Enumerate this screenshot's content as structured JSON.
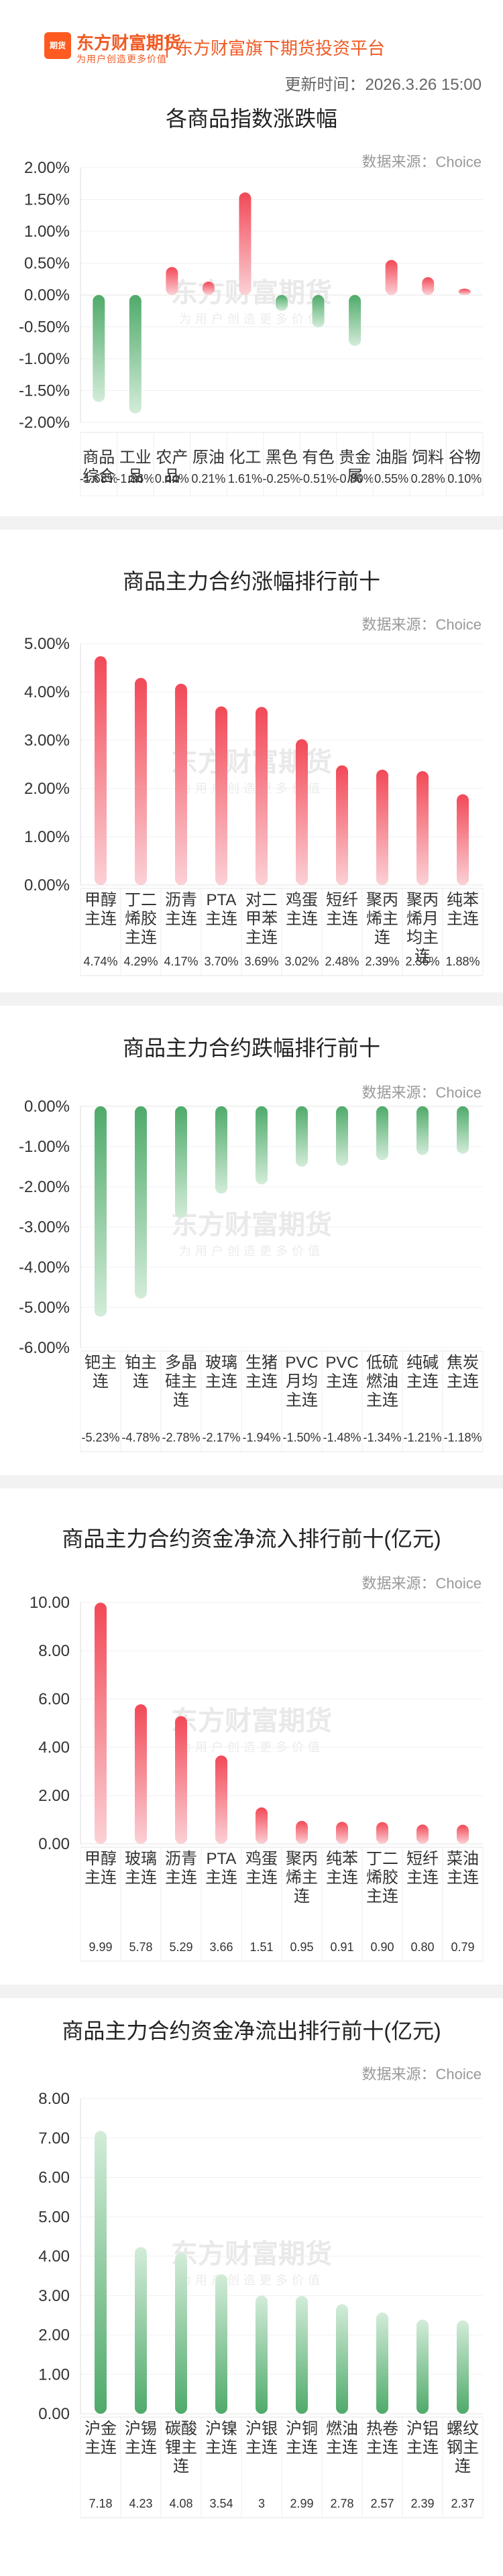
{
  "header": {
    "logo_icon": "dongfang-caifu-futures-logo",
    "logo_text": "期货",
    "brand_name": "东方财富期货",
    "brand_slogan": "为用户创造更多价值",
    "tagline": "东方财富旗下期货投资平台",
    "update_time": "更新时间：2026.3.26 15:00"
  },
  "watermark": {
    "logo": "东方财富期货",
    "sub": "为用户创造更多价值"
  },
  "colors": {
    "up": "#f24957",
    "down": "#4faa6a",
    "axis_text": "#333333",
    "grid": "#eeeeee"
  },
  "cards": [
    {
      "title": "各商品指数涨跌幅",
      "source": "数据来源：Choice"
    },
    {
      "title": "商品主力合约涨幅排行前十",
      "source": "数据来源：Choice"
    },
    {
      "title": "商品主力合约跌幅排行前十",
      "source": "数据来源：Choice"
    },
    {
      "title": "商品主力合约资金净流入排行前十(亿元)",
      "source": "数据来源：Choice"
    },
    {
      "title": "商品主力合约资金净流出排行前十(亿元)",
      "source": "数据来源：Choice"
    }
  ],
  "chart_data": [
    {
      "type": "bar",
      "title": "各商品指数涨跌幅",
      "unit": "%",
      "ylim": [
        -2.0,
        2.0
      ],
      "yticks": [
        "2.00%",
        "1.50%",
        "1.00%",
        "0.50%",
        "0.00%",
        "-0.50%",
        "-1.00%",
        "-1.50%",
        "-2.00%"
      ],
      "categories": [
        "商品综合",
        "工业品",
        "农产品",
        "原油",
        "化工",
        "黑色",
        "有色",
        "贵金属",
        "油脂",
        "饲料",
        "谷物"
      ],
      "cat_lines": [
        [
          "商品",
          "综合"
        ],
        [
          "工业",
          "品"
        ],
        [
          "农产",
          "品"
        ],
        [
          "原油"
        ],
        [
          "化工"
        ],
        [
          "黑色"
        ],
        [
          "有色"
        ],
        [
          "贵金",
          "属"
        ],
        [
          "油脂"
        ],
        [
          "饲料"
        ],
        [
          "谷物"
        ]
      ],
      "values": [
        -1.68,
        -1.86,
        0.44,
        0.21,
        1.61,
        -0.25,
        -0.51,
        -0.8,
        0.55,
        0.28,
        0.1
      ],
      "labels": [
        "-1.68%",
        "-1.86%",
        "0.44%",
        "0.21%",
        "1.61%",
        "-0.25%",
        "-0.51%",
        "-0.80%",
        "0.55%",
        "0.28%",
        "0.10%"
      ],
      "inline_category": true
    },
    {
      "type": "bar",
      "title": "商品主力合约涨幅排行前十",
      "unit": "%",
      "ylim": [
        0,
        5.0
      ],
      "yticks": [
        "5.00%",
        "4.00%",
        "3.00%",
        "2.00%",
        "1.00%",
        "0.00%"
      ],
      "categories": [
        "甲醇主连",
        "丁二烯胶主连",
        "沥青主连",
        "PTA主连",
        "对二甲苯主连",
        "鸡蛋主连",
        "短纤主连",
        "聚丙烯主连",
        "聚丙烯月均主连",
        "纯苯主连"
      ],
      "cat_lines": [
        [
          "甲醇",
          "主连"
        ],
        [
          "丁二",
          "烯胶",
          "主连"
        ],
        [
          "沥青",
          "主连"
        ],
        [
          "PTA",
          "主连"
        ],
        [
          "对二",
          "甲苯",
          "主连"
        ],
        [
          "鸡蛋",
          "主连"
        ],
        [
          "短纤",
          "主连"
        ],
        [
          "聚丙",
          "烯主",
          "连"
        ],
        [
          "聚丙",
          "烯月",
          "均主",
          "连"
        ],
        [
          "纯苯",
          "主连"
        ]
      ],
      "values": [
        4.74,
        4.29,
        4.17,
        3.7,
        3.69,
        3.02,
        2.48,
        2.39,
        2.36,
        1.88
      ],
      "labels": [
        "4.74%",
        "4.29%",
        "4.17%",
        "3.70%",
        "3.69%",
        "3.02%",
        "2.48%",
        "2.39%",
        "2.36%",
        "1.88%"
      ]
    },
    {
      "type": "bar",
      "title": "商品主力合约跌幅排行前十",
      "unit": "%",
      "ylim": [
        -6.0,
        0
      ],
      "yticks": [
        "0.00%",
        "-1.00%",
        "-2.00%",
        "-3.00%",
        "-4.00%",
        "-5.00%",
        "-6.00%"
      ],
      "categories": [
        "钯主连",
        "铂主连",
        "多晶硅主连",
        "玻璃主连",
        "生猪主连",
        "PVC月均主连",
        "PVC主连",
        "低硫燃油主连",
        "纯碱主连",
        "焦炭主连"
      ],
      "cat_lines": [
        [
          "钯主",
          "连"
        ],
        [
          "铂主",
          "连"
        ],
        [
          "多晶",
          "硅主",
          "连"
        ],
        [
          "玻璃",
          "主连"
        ],
        [
          "生猪",
          "主连"
        ],
        [
          "PVC",
          "月均",
          "主连"
        ],
        [
          "PVC",
          "主连"
        ],
        [
          "低硫",
          "燃油",
          "主连"
        ],
        [
          "纯碱",
          "主连"
        ],
        [
          "焦炭",
          "主连"
        ]
      ],
      "values": [
        -5.23,
        -4.78,
        -2.78,
        -2.17,
        -1.94,
        -1.5,
        -1.48,
        -1.34,
        -1.21,
        -1.18
      ],
      "labels": [
        "-5.23%",
        "-4.78%",
        "-2.78%",
        "-2.17%",
        "-1.94%",
        "-1.50%",
        "-1.48%",
        "-1.34%",
        "-1.21%",
        "-1.18%"
      ]
    },
    {
      "type": "bar",
      "title": "商品主力合约资金净流入排行前十(亿元)",
      "unit": "亿元",
      "ylim": [
        0,
        10.0
      ],
      "yticks": [
        "10.00",
        "8.00",
        "6.00",
        "4.00",
        "2.00",
        "0.00"
      ],
      "categories": [
        "甲醇主连",
        "玻璃主连",
        "沥青主连",
        "PTA主连",
        "鸡蛋主连",
        "聚丙烯主连",
        "纯苯主连",
        "丁二烯胶主连",
        "短纤主连",
        "菜油主连"
      ],
      "cat_lines": [
        [
          "甲醇",
          "主连"
        ],
        [
          "玻璃",
          "主连"
        ],
        [
          "沥青",
          "主连"
        ],
        [
          "PTA",
          "主连"
        ],
        [
          "鸡蛋",
          "主连"
        ],
        [
          "聚丙",
          "烯主",
          "连"
        ],
        [
          "纯苯",
          "主连"
        ],
        [
          "丁二",
          "烯胶",
          "主连"
        ],
        [
          "短纤",
          "主连"
        ],
        [
          "菜油",
          "主连"
        ]
      ],
      "values": [
        9.99,
        5.78,
        5.29,
        3.66,
        1.51,
        0.95,
        0.91,
        0.9,
        0.8,
        0.79
      ],
      "labels": [
        "9.99",
        "5.78",
        "5.29",
        "3.66",
        "1.51",
        "0.95",
        "0.91",
        "0.90",
        "0.80",
        "0.79"
      ]
    },
    {
      "type": "bar",
      "title": "商品主力合约资金净流出排行前十(亿元)",
      "unit": "亿元",
      "ylim": [
        0,
        8.0
      ],
      "yticks": [
        "8.00",
        "7.00",
        "6.00",
        "5.00",
        "4.00",
        "3.00",
        "2.00",
        "1.00",
        "0.00"
      ],
      "categories": [
        "沪金主连",
        "沪锡主连",
        "碳酸锂主连",
        "沪镍主连",
        "沪银主连",
        "沪铜主连",
        "燃油主连",
        "热卷主连",
        "沪铝主连",
        "螺纹钢主连"
      ],
      "cat_lines": [
        [
          "沪金",
          "主连"
        ],
        [
          "沪锡",
          "主连"
        ],
        [
          "碳酸",
          "锂主",
          "连"
        ],
        [
          "沪镍",
          "主连"
        ],
        [
          "沪银",
          "主连"
        ],
        [
          "沪铜",
          "主连"
        ],
        [
          "燃油",
          "主连"
        ],
        [
          "热卷",
          "主连"
        ],
        [
          "沪铝",
          "主连"
        ],
        [
          "螺纹",
          "钢主",
          "连"
        ]
      ],
      "values": [
        7.18,
        4.23,
        4.08,
        3.54,
        3,
        2.99,
        2.78,
        2.57,
        2.39,
        2.37
      ],
      "labels": [
        "7.18",
        "4.23",
        "4.08",
        "3.54",
        "3",
        "2.99",
        "2.78",
        "2.57",
        "2.39",
        "2.37"
      ]
    }
  ]
}
